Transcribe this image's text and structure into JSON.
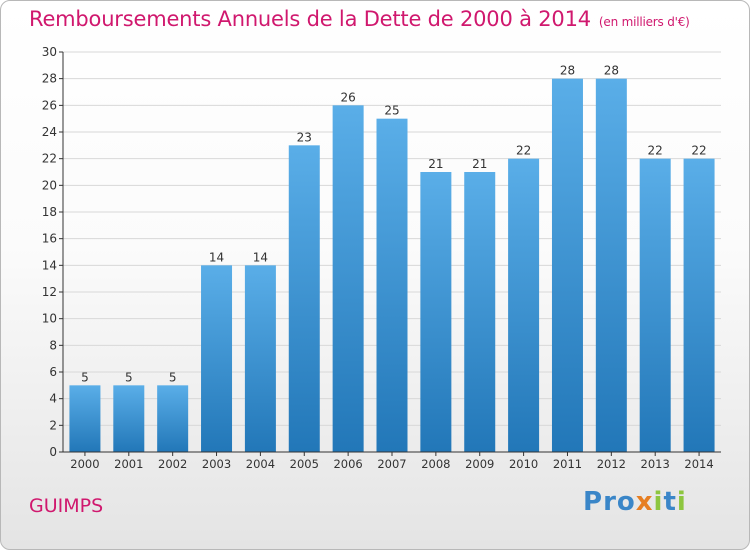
{
  "title": "Remboursements Annuels de la Dette de 2000 à 2014",
  "unit": "(en milliers d'€)",
  "commune": "GUIMPS",
  "logo": {
    "text": "Proxiti",
    "letters": [
      {
        "ch": "P",
        "color": "#3a86c8"
      },
      {
        "ch": "r",
        "color": "#3a86c8"
      },
      {
        "ch": "o",
        "color": "#3a86c8"
      },
      {
        "ch": "x",
        "color": "#e67e22"
      },
      {
        "ch": "i",
        "color": "#8dc63f"
      },
      {
        "ch": "t",
        "color": "#3a86c8"
      },
      {
        "ch": "i",
        "color": "#8dc63f"
      }
    ]
  },
  "colors": {
    "title": "#d0186e",
    "bar_top": "#5aaee8",
    "bar_bottom": "#2277b8",
    "grid": "#d8d8d8",
    "axis": "#333333"
  },
  "chart_data": {
    "type": "bar",
    "categories": [
      "2000",
      "2001",
      "2002",
      "2003",
      "2004",
      "2005",
      "2006",
      "2007",
      "2008",
      "2009",
      "2010",
      "2011",
      "2012",
      "2013",
      "2014"
    ],
    "values": [
      5,
      5,
      5,
      14,
      14,
      23,
      26,
      25,
      21,
      21,
      22,
      28,
      28,
      22,
      22
    ],
    "ylim": [
      0,
      30
    ],
    "yticks": [
      0,
      2,
      4,
      6,
      8,
      10,
      12,
      14,
      16,
      18,
      20,
      22,
      24,
      26,
      28,
      30
    ],
    "grid": true,
    "data_labels": true
  }
}
